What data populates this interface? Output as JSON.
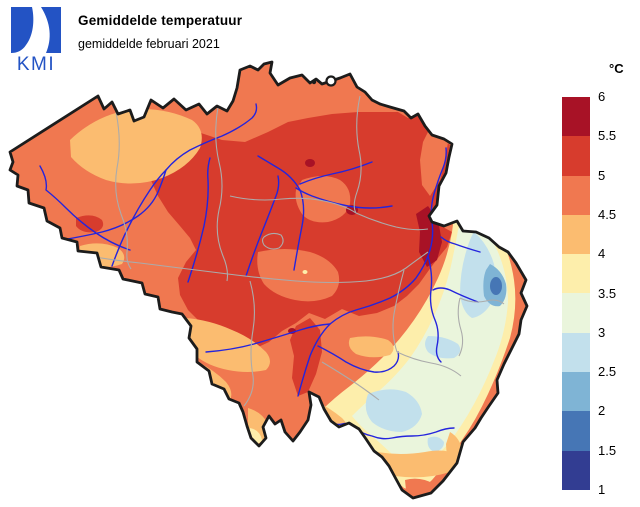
{
  "header": {
    "logo_text": "KMI",
    "title": "Gemiddelde temperatuur",
    "subtitle": "gemiddelde februari 2021"
  },
  "legend": {
    "unit_label": "°C",
    "boundary_labels": [
      "6",
      "5.5",
      "5",
      "4.5",
      "4",
      "3.5",
      "3",
      "2.5",
      "2",
      "1.5",
      "1"
    ],
    "cell_color_keys": [
      "band0",
      "band1",
      "band2",
      "band3",
      "band4",
      "band5",
      "band6",
      "band7",
      "band8",
      "band9"
    ]
  },
  "map": {
    "country": "België",
    "palette": {
      "band0": "#a81226",
      "band1": "#d73c2d",
      "band2": "#f07850",
      "band3": "#fbbc70",
      "band4": "#fdeeab",
      "band5": "#eaf5dc",
      "band6": "#c2e0ec",
      "band7": "#7fb4d5",
      "band8": "#4676b5",
      "band9": "#323d92",
      "river": "#2424dd",
      "province_border": "#ababab",
      "country_border": "#1c1c1c",
      "logo_blue": "#2353c4",
      "background": "#ffffff"
    },
    "bands_celsius": [
      {
        "from": 5.5,
        "to": 6,
        "color_key": "band0"
      },
      {
        "from": 5,
        "to": 5.5,
        "color_key": "band1"
      },
      {
        "from": 4.5,
        "to": 5,
        "color_key": "band2"
      },
      {
        "from": 4,
        "to": 4.5,
        "color_key": "band3"
      },
      {
        "from": 3.5,
        "to": 4,
        "color_key": "band4"
      },
      {
        "from": 3,
        "to": 3.5,
        "color_key": "band5"
      },
      {
        "from": 2.5,
        "to": 3,
        "color_key": "band6"
      },
      {
        "from": 2,
        "to": 2.5,
        "color_key": "band7"
      },
      {
        "from": 1.5,
        "to": 2,
        "color_key": "band8"
      },
      {
        "from": 1,
        "to": 1.5,
        "color_key": "band9"
      }
    ]
  }
}
